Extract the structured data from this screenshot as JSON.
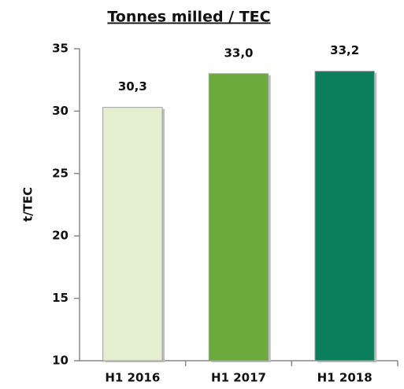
{
  "chart_data": {
    "type": "bar",
    "title": "Tonnes milled / TEC",
    "y_label": "t/TEC",
    "categories": [
      "H1 2016",
      "H1 2017",
      "H1 2018"
    ],
    "values": [
      30.3,
      33.0,
      33.2
    ],
    "value_labels": [
      "30,3",
      "33,0",
      "33,2"
    ],
    "colors": [
      "#e3efcf",
      "#6aab3c",
      "#0b7f5b"
    ],
    "ylim": [
      10,
      35
    ],
    "yticks": [
      10,
      15,
      20,
      25,
      30,
      35
    ],
    "grid": false
  }
}
